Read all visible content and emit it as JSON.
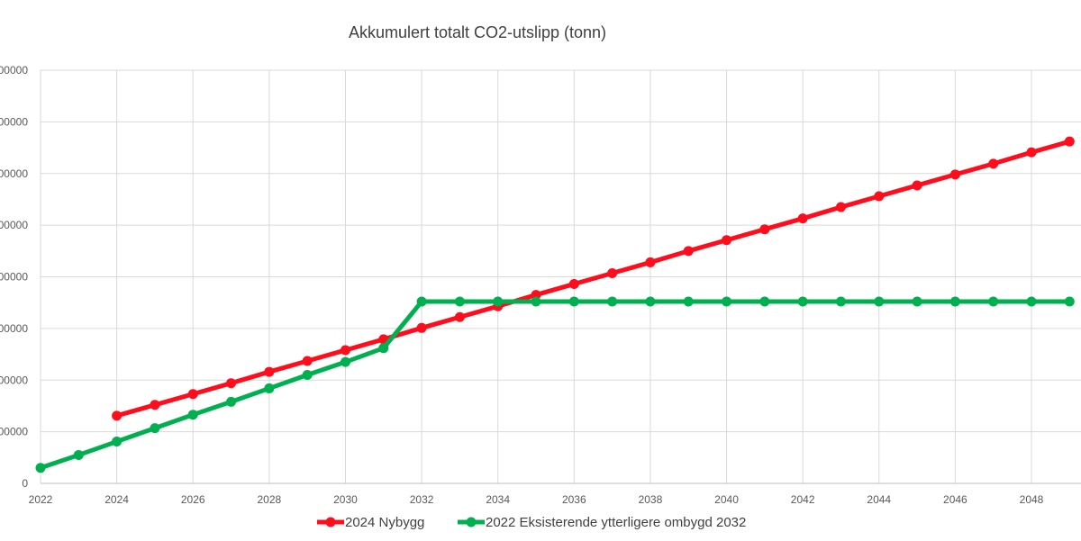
{
  "chart_data": {
    "type": "line",
    "title": "Akkumulert totalt CO2-utslipp (tonn)",
    "xlabel": "",
    "ylabel": "",
    "x_ticks": [
      "2022",
      "2024",
      "2026",
      "2028",
      "2030",
      "2032",
      "2034",
      "2036",
      "2038",
      "2040",
      "2042",
      "2044",
      "2046",
      "2048"
    ],
    "y_ticks_visible": [
      "00000",
      "00000",
      "00000",
      "00000",
      "00000",
      "00000",
      "00000",
      "00000",
      "0"
    ],
    "xlim": [
      2022,
      2049.3
    ],
    "ylim": [
      0,
      800
    ],
    "grid": "vertical and horizontal",
    "legend_position": "bottom",
    "series": [
      {
        "name": "2024 Nybygg",
        "color": "#ff0d1c",
        "x": [
          2024,
          2025,
          2026,
          2027,
          2028,
          2029,
          2030,
          2031,
          2032,
          2033,
          2034,
          2035,
          2036,
          2037,
          2038,
          2039,
          2040,
          2041,
          2042,
          2043,
          2044,
          2045,
          2046,
          2047,
          2048,
          2049
        ],
        "values": [
          131,
          152,
          173,
          194,
          216,
          237,
          258,
          279,
          301,
          322,
          343,
          365,
          386,
          407,
          428,
          450,
          471,
          492,
          513,
          535,
          556,
          577,
          598,
          619,
          641,
          662
        ]
      },
      {
        "name": "2022 Eksisterende ytterligere ombygd 2032",
        "color": "#00b050",
        "x": [
          2022,
          2023,
          2024,
          2025,
          2026,
          2027,
          2028,
          2029,
          2030,
          2031,
          2032,
          2033,
          2034,
          2035,
          2036,
          2037,
          2038,
          2039,
          2040,
          2041,
          2042,
          2043,
          2044,
          2045,
          2046,
          2047,
          2048,
          2049
        ],
        "values": [
          30,
          55,
          81,
          107,
          133,
          158,
          184,
          210,
          235,
          262,
          352,
          352,
          352,
          352,
          352,
          352,
          352,
          352,
          352,
          352,
          352,
          352,
          352,
          352,
          352,
          352,
          352,
          352
        ]
      }
    ]
  }
}
